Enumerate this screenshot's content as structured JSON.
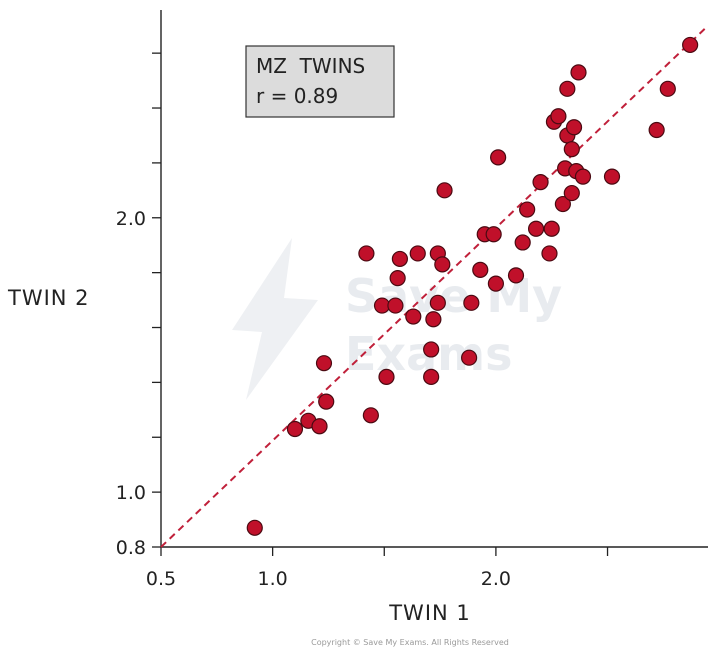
{
  "chart_data": {
    "type": "scatter",
    "title": "",
    "xlabel": "TWIN 1",
    "ylabel": "TWIN 2",
    "xlim": [
      0.5,
      2.95
    ],
    "ylim": [
      0.8,
      2.75
    ],
    "x_ticks": [
      0.5,
      1.0,
      1.5,
      2.0,
      2.5
    ],
    "x_tick_labels": [
      "0.5",
      "1.0",
      "",
      "2.0",
      ""
    ],
    "y_ticks": [
      0.8,
      1.0,
      1.2,
      1.4,
      1.6,
      1.8,
      2.0,
      2.2,
      2.4,
      2.6
    ],
    "y_tick_labels": [
      "0.8",
      "1.0",
      "",
      "",
      "",
      "",
      "2.0",
      "",
      "",
      ""
    ],
    "grid": false,
    "annotation": {
      "line1": "MZ  TWINS",
      "line2": "r = 0.89"
    },
    "trend_line": {
      "x": [
        0.5,
        2.95
      ],
      "y": [
        0.8,
        2.7
      ],
      "color": "#c0203a",
      "style": "dashed"
    },
    "marker_color": "#c0102a",
    "copyright": "Copyright © Save My Exams. All Rights Reserved",
    "watermark": "Save My Exams",
    "series": [
      {
        "points": [
          [
            0.92,
            0.87
          ],
          [
            1.1,
            1.23
          ],
          [
            1.16,
            1.26
          ],
          [
            1.21,
            1.24
          ],
          [
            1.23,
            1.47
          ],
          [
            1.24,
            1.33
          ],
          [
            1.42,
            1.87
          ],
          [
            1.44,
            1.28
          ],
          [
            1.49,
            1.68
          ],
          [
            1.51,
            1.42
          ],
          [
            1.55,
            1.68
          ],
          [
            1.56,
            1.78
          ],
          [
            1.57,
            1.85
          ],
          [
            1.63,
            1.64
          ],
          [
            1.65,
            1.87
          ],
          [
            1.71,
            1.42
          ],
          [
            1.71,
            1.52
          ],
          [
            1.72,
            1.63
          ],
          [
            1.74,
            1.69
          ],
          [
            1.74,
            1.87
          ],
          [
            1.76,
            1.83
          ],
          [
            1.77,
            2.1
          ],
          [
            1.88,
            1.49
          ],
          [
            1.89,
            1.69
          ],
          [
            1.93,
            1.81
          ],
          [
            1.95,
            1.94
          ],
          [
            1.99,
            1.94
          ],
          [
            2.0,
            1.76
          ],
          [
            2.01,
            2.22
          ],
          [
            2.09,
            1.79
          ],
          [
            2.12,
            1.91
          ],
          [
            2.14,
            2.03
          ],
          [
            2.18,
            1.96
          ],
          [
            2.2,
            2.13
          ],
          [
            2.24,
            1.87
          ],
          [
            2.25,
            1.96
          ],
          [
            2.26,
            2.35
          ],
          [
            2.28,
            2.37
          ],
          [
            2.3,
            2.05
          ],
          [
            2.31,
            2.18
          ],
          [
            2.32,
            2.3
          ],
          [
            2.32,
            2.47
          ],
          [
            2.34,
            2.09
          ],
          [
            2.34,
            2.25
          ],
          [
            2.35,
            2.33
          ],
          [
            2.36,
            2.17
          ],
          [
            2.37,
            2.53
          ],
          [
            2.39,
            2.15
          ],
          [
            2.52,
            2.15
          ],
          [
            2.72,
            2.32
          ],
          [
            2.77,
            2.47
          ],
          [
            2.87,
            2.63
          ]
        ]
      }
    ]
  }
}
